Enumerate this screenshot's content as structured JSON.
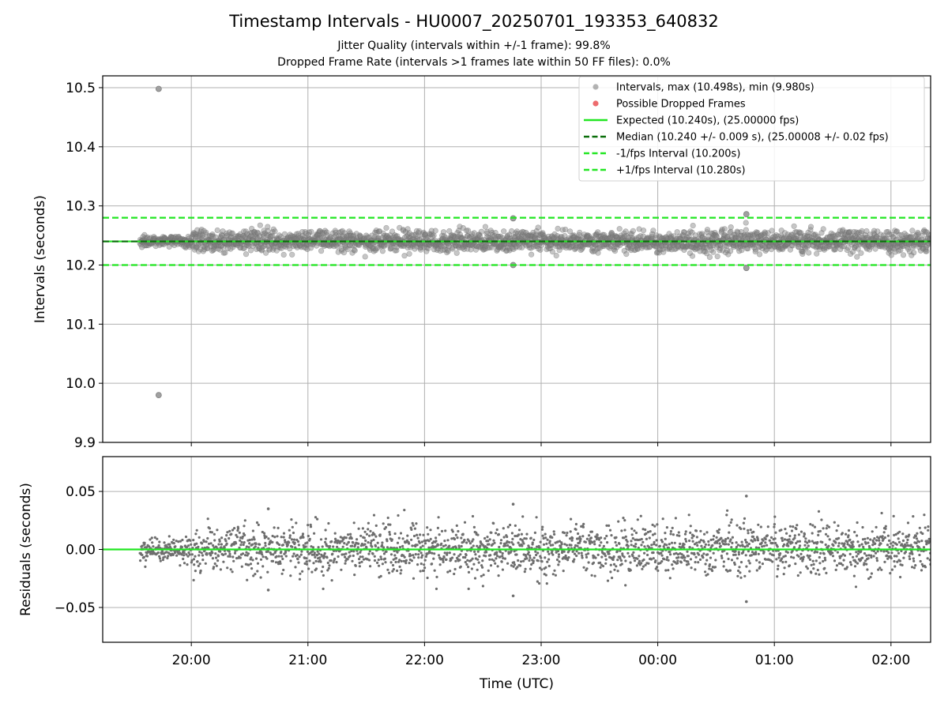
{
  "chart_data": {
    "type": "scatter",
    "title": "Timestamp Intervals - HU0007_20250701_193353_640832",
    "subtitle_lines": [
      "Jitter Quality (intervals within +/-1 frame): 99.8%",
      "Dropped Frame Rate (intervals >1 frames late within 50 FF files): 0.0%"
    ],
    "x": {
      "label": "Time (UTC)",
      "ticks": [
        "20:00",
        "21:00",
        "22:00",
        "23:00",
        "00:00",
        "01:00",
        "02:00"
      ],
      "tick_hours_from_20": [
        0,
        1,
        2,
        3,
        4,
        5,
        6
      ],
      "range_hours_from_20": [
        -0.76,
        6.34
      ],
      "data_start_hours_from_20": -0.44,
      "data_end_hours_from_20": 6.34
    },
    "panels": [
      {
        "id": "intervals",
        "ylabel": "Intervals (seconds)",
        "ylim": [
          9.9,
          10.52
        ],
        "yticks": [
          9.9,
          10.0,
          10.1,
          10.2,
          10.3,
          10.4,
          10.5
        ],
        "ytick_labels": [
          "9.9",
          "10.0",
          "10.1",
          "10.2",
          "10.3",
          "10.4",
          "10.5"
        ],
        "grid": true,
        "legend_placement": "top-right",
        "series": [
          {
            "name": "Intervals, max (10.498s), min (9.980s)",
            "kind": "scatter",
            "color": "#808080",
            "center": 10.24,
            "spread": 0.009,
            "count": 2350
          },
          {
            "name": "Possible Dropped Frames",
            "kind": "scatter",
            "color": "#e8474a",
            "count": 0
          },
          {
            "name": "Expected (10.240s), (25.00000 fps)",
            "kind": "hline",
            "y": 10.24,
            "color": "#22e622",
            "dash": "solid"
          },
          {
            "name": "Median (10.240 +/- 0.009 s), (25.00008 +/- 0.02 fps)",
            "kind": "hline",
            "y": 10.24,
            "color": "#0a6e0a",
            "dash": "dashed"
          },
          {
            "name": "-1/fps Interval (10.200s)",
            "kind": "hline",
            "y": 10.2,
            "color": "#22e622",
            "dash": "dashed"
          },
          {
            "name": "+1/fps Interval (10.280s)",
            "kind": "hline",
            "y": 10.28,
            "color": "#22e622",
            "dash": "dashed"
          }
        ],
        "outliers": [
          {
            "x": -0.28,
            "y": 10.498
          },
          {
            "x": -0.28,
            "y": 9.98
          },
          {
            "x": 4.76,
            "y": 10.286
          },
          {
            "x": 4.76,
            "y": 10.195
          },
          {
            "x": 2.76,
            "y": 10.279
          },
          {
            "x": 2.76,
            "y": 10.2
          }
        ]
      },
      {
        "id": "residuals",
        "ylabel": "Residuals (seconds)",
        "ylim": [
          -0.08,
          0.08
        ],
        "yticks": [
          -0.05,
          0.0,
          0.05
        ],
        "ytick_labels": [
          "−0.05",
          "0.00",
          "0.05"
        ],
        "grid": true,
        "series": [
          {
            "name": "Residuals",
            "kind": "scatter",
            "color": "#6e6e6e",
            "center": 0.0,
            "spread": 0.011,
            "count": 2350
          },
          {
            "name": "Zero",
            "kind": "hline",
            "y": 0.0,
            "color": "#22e622",
            "dash": "solid"
          }
        ],
        "outliers": [
          {
            "x": 4.76,
            "y": 0.046
          },
          {
            "x": 4.76,
            "y": -0.045
          },
          {
            "x": 2.76,
            "y": 0.039
          },
          {
            "x": 2.76,
            "y": -0.04
          },
          {
            "x": 0.66,
            "y": 0.035
          },
          {
            "x": 0.66,
            "y": -0.035
          }
        ]
      }
    ]
  }
}
